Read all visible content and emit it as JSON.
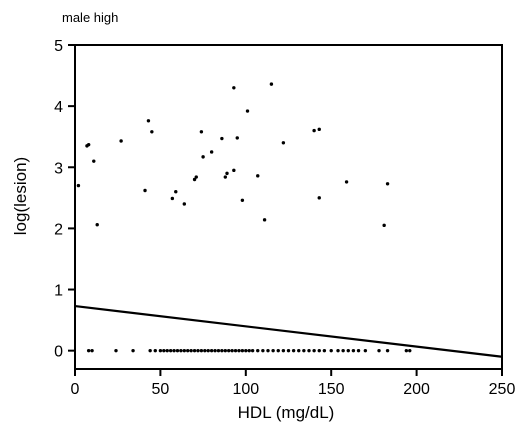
{
  "chart_data": {
    "type": "scatter",
    "title": "male high",
    "xlabel": "HDL (mg/dL)",
    "ylabel": "log(lesion)",
    "xlim": [
      0,
      250
    ],
    "ylim": [
      -0.3,
      5
    ],
    "xticks": [
      0,
      50,
      100,
      150,
      200,
      250
    ],
    "yticks": [
      0,
      1,
      2,
      3,
      4,
      5
    ],
    "xtick_labels": [
      "0",
      "50",
      "100",
      "150",
      "200",
      "250"
    ],
    "ytick_labels": [
      "0",
      "1",
      "2",
      "3",
      "4",
      "5"
    ],
    "grid": false,
    "legend": "none",
    "colors": {
      "points": "#000000",
      "line": "#000000",
      "axis": "#000000"
    },
    "series": [
      {
        "kind": "points",
        "points": [
          [
            2,
            2.7
          ],
          [
            7,
            3.35
          ],
          [
            8,
            3.37
          ],
          [
            11,
            3.1
          ],
          [
            13,
            2.06
          ],
          [
            27,
            3.43
          ],
          [
            41,
            2.62
          ],
          [
            43,
            3.76
          ],
          [
            45,
            3.58
          ],
          [
            57,
            2.49
          ],
          [
            59,
            2.6
          ],
          [
            64,
            2.4
          ],
          [
            70,
            2.8
          ],
          [
            71,
            2.84
          ],
          [
            74,
            3.58
          ],
          [
            75,
            3.17
          ],
          [
            80,
            3.25
          ],
          [
            86,
            3.47
          ],
          [
            88,
            2.84
          ],
          [
            89,
            2.9
          ],
          [
            93,
            2.95
          ],
          [
            93,
            4.3
          ],
          [
            95,
            3.48
          ],
          [
            98,
            2.46
          ],
          [
            101,
            3.92
          ],
          [
            107,
            2.86
          ],
          [
            111,
            2.14
          ],
          [
            115,
            4.36
          ],
          [
            122,
            3.4
          ],
          [
            140,
            3.6
          ],
          [
            143,
            3.62
          ],
          [
            143,
            2.5
          ],
          [
            159,
            2.76
          ],
          [
            181,
            2.05
          ],
          [
            183,
            2.73
          ]
        ]
      },
      {
        "kind": "points",
        "points": [
          [
            8,
            0
          ],
          [
            10,
            0
          ],
          [
            24,
            0
          ],
          [
            34,
            0
          ],
          [
            44,
            0
          ],
          [
            47,
            0
          ],
          [
            50,
            0
          ],
          [
            52,
            0
          ],
          [
            54,
            0
          ],
          [
            56,
            0
          ],
          [
            58,
            0
          ],
          [
            60,
            0
          ],
          [
            62,
            0
          ],
          [
            64,
            0
          ],
          [
            66,
            0
          ],
          [
            68,
            0
          ],
          [
            70,
            0
          ],
          [
            72,
            0
          ],
          [
            74,
            0
          ],
          [
            76,
            0
          ],
          [
            78,
            0
          ],
          [
            80,
            0
          ],
          [
            82,
            0
          ],
          [
            84,
            0
          ],
          [
            86,
            0
          ],
          [
            88,
            0
          ],
          [
            90,
            0
          ],
          [
            92,
            0
          ],
          [
            94,
            0
          ],
          [
            96,
            0
          ],
          [
            98,
            0
          ],
          [
            100,
            0
          ],
          [
            102,
            0
          ],
          [
            104,
            0
          ],
          [
            107,
            0
          ],
          [
            110,
            0
          ],
          [
            113,
            0
          ],
          [
            116,
            0
          ],
          [
            119,
            0
          ],
          [
            122,
            0
          ],
          [
            125,
            0
          ],
          [
            128,
            0
          ],
          [
            131,
            0
          ],
          [
            134,
            0
          ],
          [
            137,
            0
          ],
          [
            140,
            0
          ],
          [
            143,
            0
          ],
          [
            146,
            0
          ],
          [
            150,
            0
          ],
          [
            154,
            0
          ],
          [
            157,
            0
          ],
          [
            160,
            0
          ],
          [
            163,
            0
          ],
          [
            166,
            0
          ],
          [
            170,
            0
          ],
          [
            178,
            0
          ],
          [
            183,
            0
          ],
          [
            194,
            0
          ],
          [
            196,
            0
          ]
        ]
      },
      {
        "kind": "line",
        "points": [
          [
            0,
            0.73
          ],
          [
            250,
            -0.1
          ]
        ]
      }
    ]
  }
}
